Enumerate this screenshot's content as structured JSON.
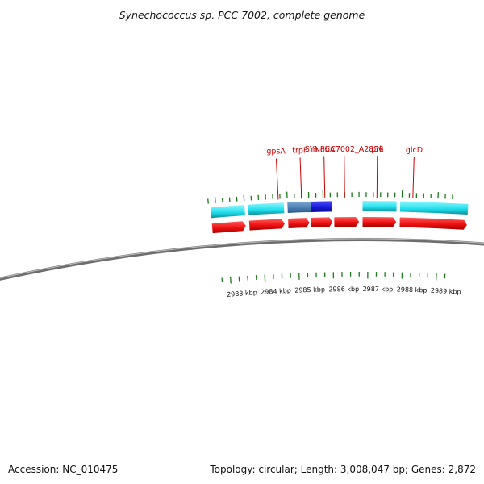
{
  "title": "Synechococcus sp. PCC 7002, complete genome",
  "footer": {
    "accession": "Accession: NC_010475",
    "summary": "Topology: circular; Length: 3,008,047 bp; Genes: 2,872"
  },
  "colors": {
    "forward_cds": "#ee1111",
    "reverse_cds": "#22e0ee",
    "highlight_gene": "#1a1add",
    "highlight_neighbor": "#4a7fb2",
    "label": "#cc0000",
    "gc_tick": "#1a7a1a",
    "backbone": "#808080"
  },
  "axis": {
    "unit": "kbp",
    "ticks": [
      {
        "kbp": 2983,
        "label": "2983 kbp"
      },
      {
        "kbp": 2984,
        "label": "2984 kbp"
      },
      {
        "kbp": 2985,
        "label": "2985 kbp"
      },
      {
        "kbp": 2986,
        "label": "2986 kbp"
      },
      {
        "kbp": 2987,
        "label": "2987 kbp"
      },
      {
        "kbp": 2988,
        "label": "2988 kbp"
      },
      {
        "kbp": 2989,
        "label": "2989 kbp"
      }
    ]
  },
  "genes": {
    "forward": [
      {
        "start_kbp": 2982.3,
        "end_kbp": 2983.25
      },
      {
        "start_kbp": 2983.35,
        "end_kbp": 2984.35
      },
      {
        "start_kbp": 2984.45,
        "end_kbp": 2985.05
      },
      {
        "start_kbp": 2985.1,
        "end_kbp": 2985.7
      },
      {
        "start_kbp": 2985.75,
        "end_kbp": 2986.45
      },
      {
        "start_kbp": 2986.55,
        "end_kbp": 2987.5
      },
      {
        "start_kbp": 2987.6,
        "end_kbp": 2989.5
      }
    ],
    "reverse": [
      {
        "start_kbp": 2982.3,
        "end_kbp": 2983.25,
        "highlight": "none"
      },
      {
        "start_kbp": 2983.35,
        "end_kbp": 2984.35,
        "highlight": "none"
      },
      {
        "start_kbp": 2984.45,
        "end_kbp": 2985.1,
        "highlight": "neighbor"
      },
      {
        "start_kbp": 2985.1,
        "end_kbp": 2985.7,
        "highlight": "selected"
      },
      {
        "start_kbp": 2986.55,
        "end_kbp": 2987.5,
        "highlight": "none"
      },
      {
        "start_kbp": 2987.6,
        "end_kbp": 2989.5,
        "highlight": "none"
      }
    ]
  },
  "labels": [
    {
      "name": "gpsA",
      "kbp": 2984.2
    },
    {
      "name": "trpF",
      "kbp": 2984.85
    },
    {
      "name": "mobA",
      "kbp": 2985.5
    },
    {
      "name": "SYNPCC7002_A2856",
      "kbp": 2986.05
    },
    {
      "name": "prk",
      "kbp": 2986.95
    },
    {
      "name": "glcD",
      "kbp": 2987.95
    }
  ],
  "gc_ticks": [
    {
      "kbp": 2982.25,
      "value": 0.35,
      "side": "outer"
    },
    {
      "kbp": 2982.45,
      "value": 0.55,
      "side": "outer"
    },
    {
      "kbp": 2982.65,
      "value": 0.3,
      "side": "outer"
    },
    {
      "kbp": 2982.85,
      "value": 0.3,
      "side": "outer"
    },
    {
      "kbp": 2983.05,
      "value": 0.3,
      "side": "outer"
    },
    {
      "kbp": 2983.25,
      "value": 0.45,
      "side": "outer"
    },
    {
      "kbp": 2983.45,
      "value": 0.3,
      "side": "outer"
    },
    {
      "kbp": 2983.65,
      "value": 0.35,
      "side": "outer"
    },
    {
      "kbp": 2983.85,
      "value": 0.45,
      "side": "outer"
    },
    {
      "kbp": 2984.05,
      "value": 0.3,
      "side": "outer"
    },
    {
      "kbp": 2984.25,
      "value": 0.35,
      "side": "outer"
    },
    {
      "kbp": 2984.45,
      "value": 0.6,
      "side": "outer"
    },
    {
      "kbp": 2984.65,
      "value": 0.3,
      "side": "outer"
    },
    {
      "kbp": 2984.85,
      "value": 0.3,
      "side": "outer"
    },
    {
      "kbp": 2985.05,
      "value": 0.45,
      "side": "outer"
    },
    {
      "kbp": 2985.25,
      "value": 0.3,
      "side": "outer"
    },
    {
      "kbp": 2985.45,
      "value": 0.55,
      "side": "outer"
    },
    {
      "kbp": 2985.65,
      "value": 0.3,
      "side": "outer"
    },
    {
      "kbp": 2985.85,
      "value": 0.3,
      "side": "outer"
    },
    {
      "kbp": 2986.05,
      "value": 0.3,
      "side": "outer"
    },
    {
      "kbp": 2986.25,
      "value": 0.3,
      "side": "outer"
    },
    {
      "kbp": 2986.45,
      "value": 0.35,
      "side": "outer"
    },
    {
      "kbp": 2986.65,
      "value": 0.3,
      "side": "outer"
    },
    {
      "kbp": 2986.85,
      "value": 0.3,
      "side": "outer"
    },
    {
      "kbp": 2987.05,
      "value": 0.3,
      "side": "outer"
    },
    {
      "kbp": 2987.25,
      "value": 0.3,
      "side": "outer"
    },
    {
      "kbp": 2987.45,
      "value": 0.3,
      "side": "outer"
    },
    {
      "kbp": 2987.65,
      "value": 0.6,
      "side": "outer"
    },
    {
      "kbp": 2987.85,
      "value": 0.3,
      "side": "outer"
    },
    {
      "kbp": 2988.05,
      "value": 0.3,
      "side": "outer"
    },
    {
      "kbp": 2988.25,
      "value": 0.3,
      "side": "outer"
    },
    {
      "kbp": 2988.45,
      "value": 0.3,
      "side": "outer"
    },
    {
      "kbp": 2988.65,
      "value": 0.55,
      "side": "outer"
    },
    {
      "kbp": 2988.85,
      "value": 0.3,
      "side": "outer"
    },
    {
      "kbp": 2989.05,
      "value": 0.3,
      "side": "outer"
    },
    {
      "kbp": 2982.45,
      "value": 0.3,
      "side": "inner"
    },
    {
      "kbp": 2982.7,
      "value": 0.55,
      "side": "inner"
    },
    {
      "kbp": 2982.95,
      "value": 0.3,
      "side": "inner"
    },
    {
      "kbp": 2983.2,
      "value": 0.3,
      "side": "inner"
    },
    {
      "kbp": 2983.45,
      "value": 0.3,
      "side": "inner"
    },
    {
      "kbp": 2983.7,
      "value": 0.6,
      "side": "inner"
    },
    {
      "kbp": 2983.95,
      "value": 0.3,
      "side": "inner"
    },
    {
      "kbp": 2984.2,
      "value": 0.3,
      "side": "inner"
    },
    {
      "kbp": 2984.45,
      "value": 0.3,
      "side": "inner"
    },
    {
      "kbp": 2984.7,
      "value": 0.6,
      "side": "inner"
    },
    {
      "kbp": 2984.95,
      "value": 0.3,
      "side": "inner"
    },
    {
      "kbp": 2985.2,
      "value": 0.3,
      "side": "inner"
    },
    {
      "kbp": 2985.45,
      "value": 0.3,
      "side": "inner"
    },
    {
      "kbp": 2985.7,
      "value": 0.55,
      "side": "inner"
    },
    {
      "kbp": 2985.95,
      "value": 0.3,
      "side": "inner"
    },
    {
      "kbp": 2986.2,
      "value": 0.3,
      "side": "inner"
    },
    {
      "kbp": 2986.45,
      "value": 0.3,
      "side": "inner"
    },
    {
      "kbp": 2986.7,
      "value": 0.6,
      "side": "inner"
    },
    {
      "kbp": 2986.95,
      "value": 0.3,
      "side": "inner"
    },
    {
      "kbp": 2987.2,
      "value": 0.3,
      "side": "inner"
    },
    {
      "kbp": 2987.45,
      "value": 0.3,
      "side": "inner"
    },
    {
      "kbp": 2987.7,
      "value": 0.55,
      "side": "inner"
    },
    {
      "kbp": 2987.95,
      "value": 0.3,
      "side": "inner"
    },
    {
      "kbp": 2988.2,
      "value": 0.3,
      "side": "inner"
    },
    {
      "kbp": 2988.45,
      "value": 0.3,
      "side": "inner"
    },
    {
      "kbp": 2988.7,
      "value": 0.6,
      "side": "inner"
    },
    {
      "kbp": 2988.95,
      "value": 0.3,
      "side": "inner"
    }
  ]
}
